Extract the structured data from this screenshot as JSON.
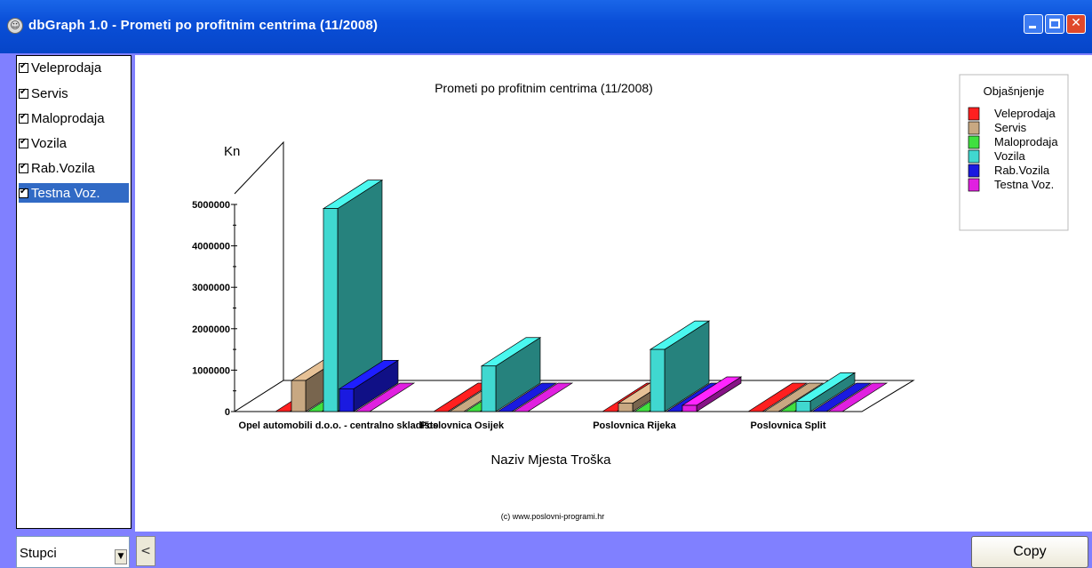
{
  "window": {
    "title": "dbGraph 1.0 - Prometi po profitnim centrima (11/2008)",
    "app_icon": "app-icon",
    "controls": [
      "minimize-icon",
      "maximize-icon",
      "close-icon"
    ]
  },
  "series_list": {
    "items": [
      {
        "label": "Veleprodaja",
        "checked": true
      },
      {
        "label": "Servis",
        "checked": true
      },
      {
        "label": "Maloprodaja",
        "checked": true
      },
      {
        "label": "Vozila",
        "checked": true
      },
      {
        "label": "Rab.Vozila",
        "checked": true
      },
      {
        "label": "Testna Voz.",
        "checked": true,
        "selected": true
      }
    ]
  },
  "chart_data": {
    "type": "bar",
    "title": "Prometi po profitnim centrima (11/2008)",
    "ylabel": "Kn",
    "xlabel": "Naziv Mjesta Troška",
    "footer": "(c) www.poslovni-programi.hr",
    "legend_title": "Objašnjenje",
    "legend_position": "top-right",
    "ylim": [
      0,
      5000000
    ],
    "yticks": [
      "0",
      "1000000",
      "2000000",
      "3000000",
      "4000000",
      "5000000"
    ],
    "categories": [
      "Opel automobili d.o.o. - centralno skladište",
      "Poslovnica Osijek",
      "Poslovnica Rijeka",
      "Poslovnica Split"
    ],
    "series": [
      {
        "name": "Veleprodaja",
        "color": "#ff2020",
        "values": [
          0,
          0,
          0,
          0
        ]
      },
      {
        "name": "Servis",
        "color": "#c8a882",
        "values": [
          750000,
          0,
          200000,
          0
        ]
      },
      {
        "name": "Maloprodaja",
        "color": "#40e040",
        "values": [
          0,
          0,
          0,
          0
        ]
      },
      {
        "name": "Vozila",
        "color": "#40d8d0",
        "values": [
          4900000,
          1100000,
          1500000,
          250000
        ]
      },
      {
        "name": "Rab.Vozila",
        "color": "#1a1ae0",
        "values": [
          550000,
          0,
          0,
          0
        ]
      },
      {
        "name": "Testna Voz.",
        "color": "#e020e0",
        "values": [
          0,
          0,
          150000,
          0
        ]
      }
    ]
  },
  "bottom": {
    "chart_type_select": "Stupci",
    "scroll_left": "<",
    "copy_label": "Copy"
  }
}
